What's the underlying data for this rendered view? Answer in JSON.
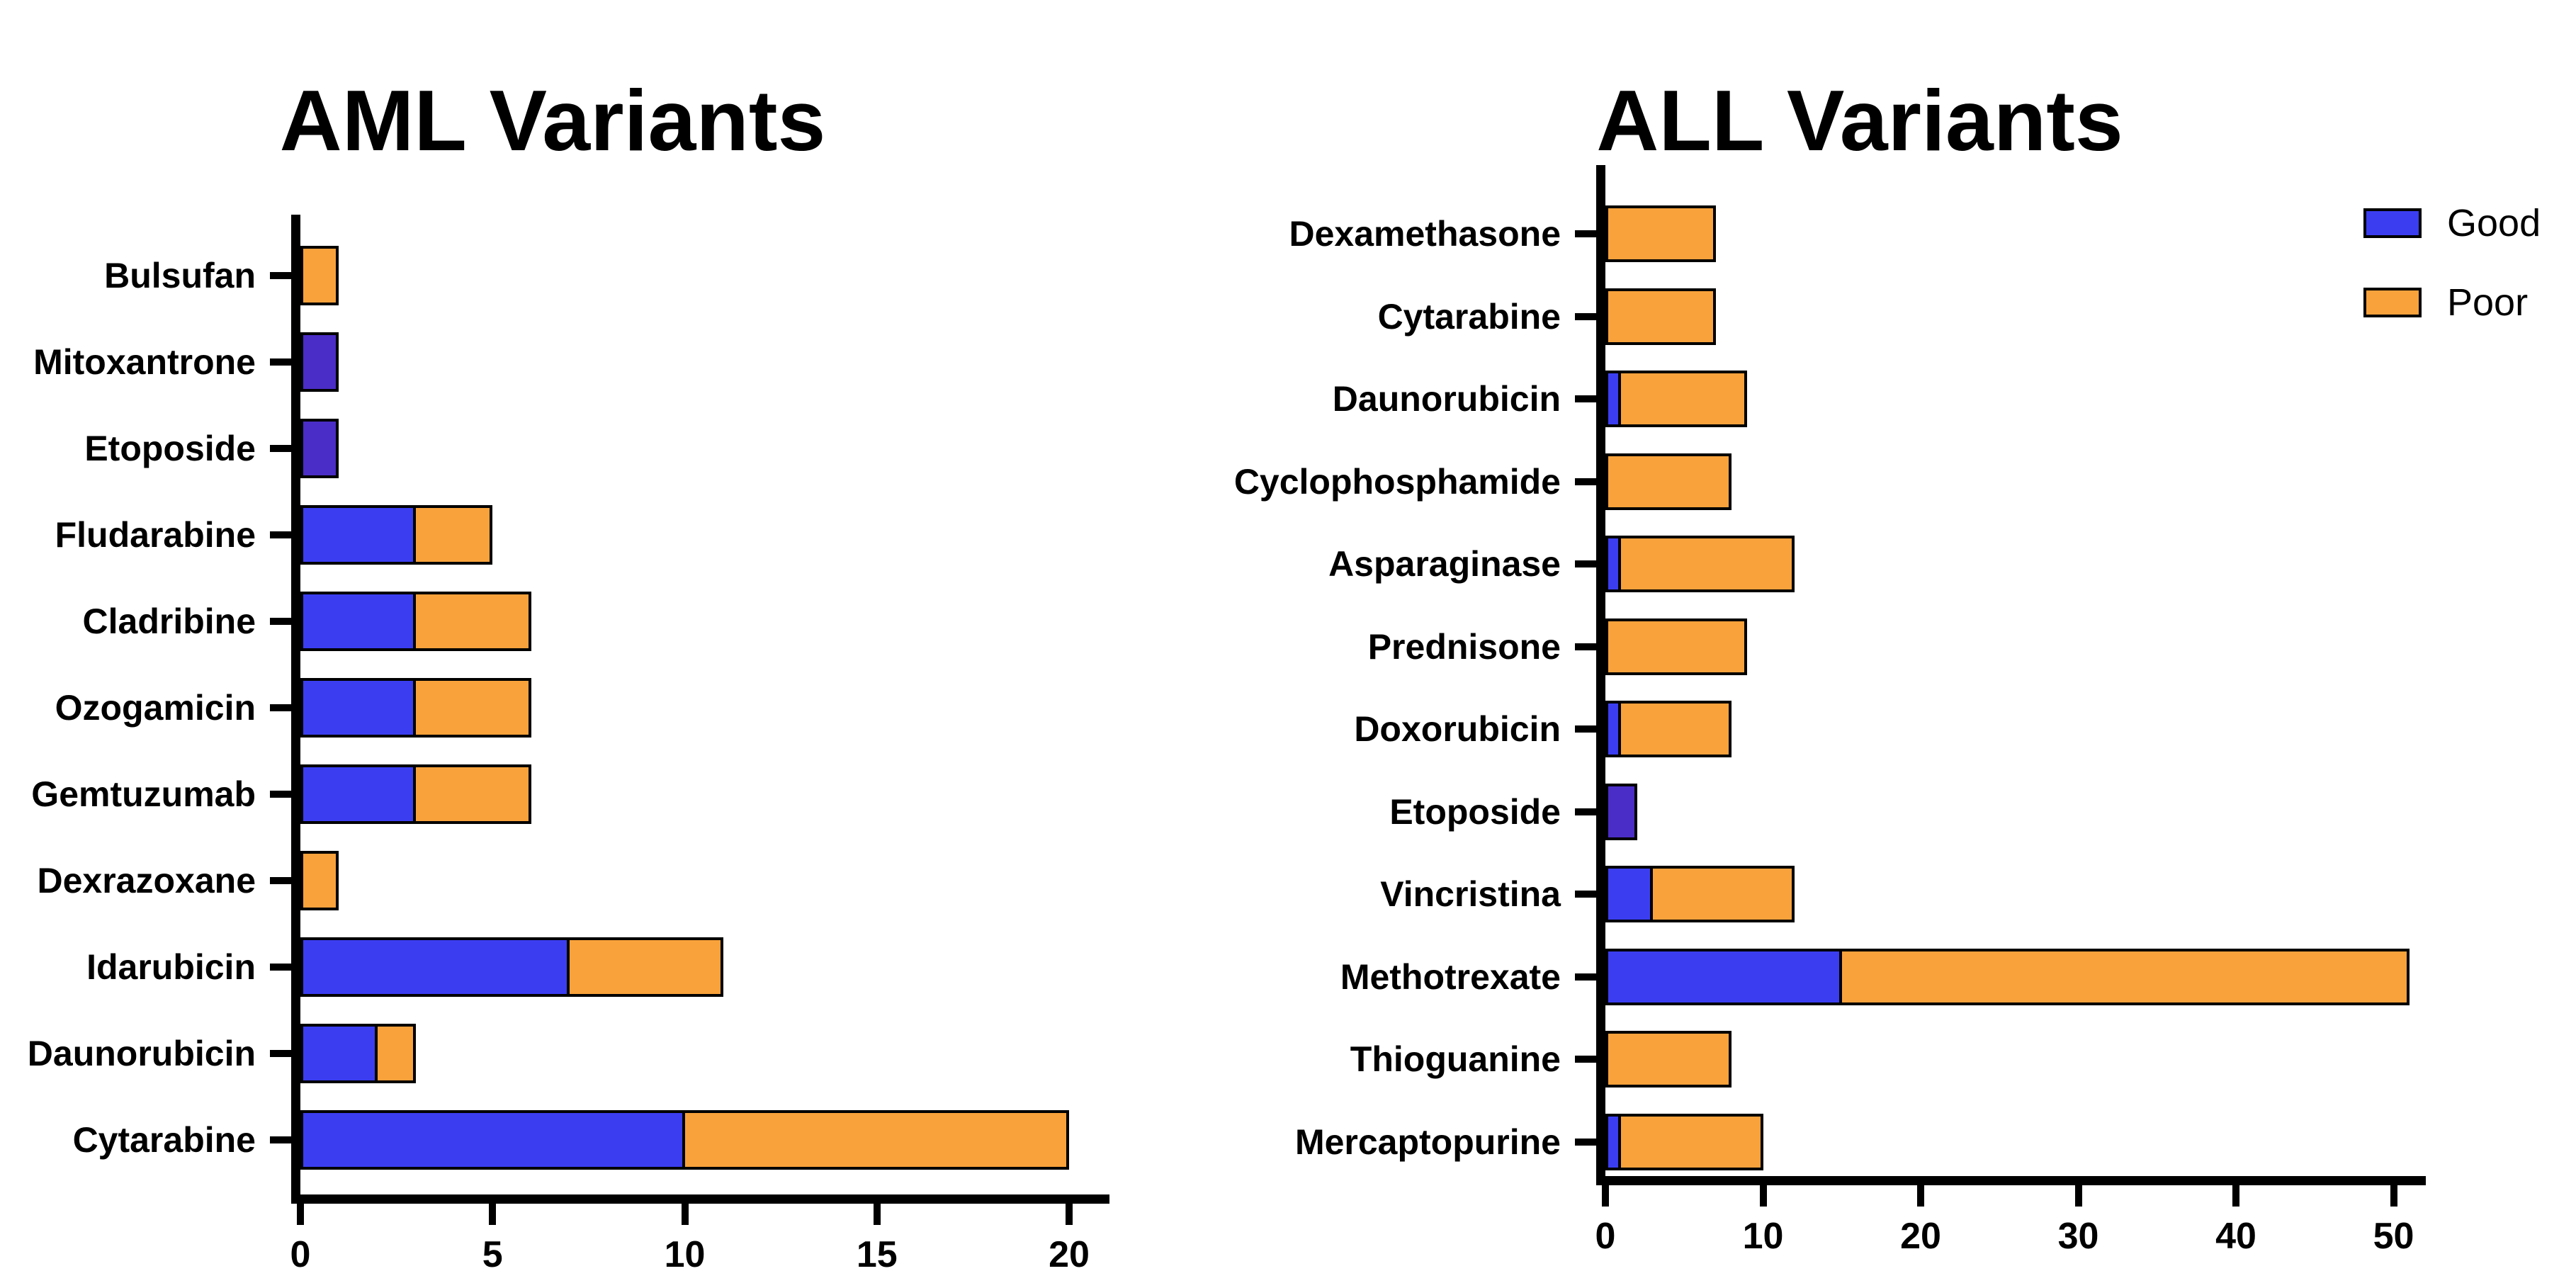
{
  "figure": {
    "background": "#ffffff",
    "text_color": "#000000"
  },
  "legend": {
    "position": "top-right",
    "items": [
      {
        "label": "Good",
        "color": "#3b3ef0"
      },
      {
        "label": "Poor",
        "color": "#f9a23b"
      }
    ]
  },
  "colors": {
    "good_blue": "#3b3ef0",
    "good_dark_blue": "#4a2dc6",
    "poor_orange": "#f9a23b",
    "axis_black": "#000000"
  },
  "chart_data": [
    {
      "type": "bar",
      "orientation": "horizontal",
      "stacked": true,
      "title": "AML Variants",
      "grid": false,
      "xlabel": "",
      "ylabel": "",
      "xlim": [
        0,
        20
      ],
      "xticks": [
        0,
        5,
        10,
        15,
        20
      ],
      "categories": [
        "Bulsufan",
        "Mitoxantrone",
        "Etoposide",
        "Fludarabine",
        "Cladribine",
        "Ozogamicin",
        "Gemtuzumab",
        "Dexrazoxane",
        "Idarubicin",
        "Daunorubicin",
        "Cytarabine"
      ],
      "series": [
        {
          "name": "Good",
          "color": "#3b3ef0",
          "values": [
            0,
            1,
            1,
            3,
            3,
            3,
            3,
            0,
            7,
            2,
            10
          ]
        },
        {
          "name": "Poor",
          "color": "#f9a23b",
          "values": [
            1,
            0,
            0,
            2,
            3,
            3,
            3,
            1,
            4,
            1,
            10
          ]
        }
      ],
      "good_dark_color": "#4a2dc6",
      "dark_rows": [
        1,
        2
      ]
    },
    {
      "type": "bar",
      "orientation": "horizontal",
      "stacked": true,
      "title": "ALL Variants",
      "grid": false,
      "xlabel": "",
      "ylabel": "",
      "xlim": [
        0,
        50
      ],
      "xticks": [
        0,
        10,
        20,
        30,
        40,
        50
      ],
      "categories": [
        "Dexamethasone",
        "Cytarabine",
        "Daunorubicin",
        "Cyclophosphamide",
        "Asparaginase",
        "Prednisone",
        "Doxorubicin",
        "Etoposide",
        "Vincristina",
        "Methotrexate",
        "Thioguanine",
        "Mercaptopurine"
      ],
      "series": [
        {
          "name": "Good",
          "color": "#3b3ef0",
          "values": [
            0,
            0,
            1,
            0,
            1,
            0,
            1,
            2,
            3,
            15,
            0,
            1
          ]
        },
        {
          "name": "Poor",
          "color": "#f9a23b",
          "values": [
            7,
            7,
            8,
            8,
            11,
            9,
            7,
            0,
            9,
            36,
            8,
            9
          ]
        }
      ],
      "good_dark_color": "#4a2dc6",
      "dark_rows": [
        7
      ]
    }
  ]
}
